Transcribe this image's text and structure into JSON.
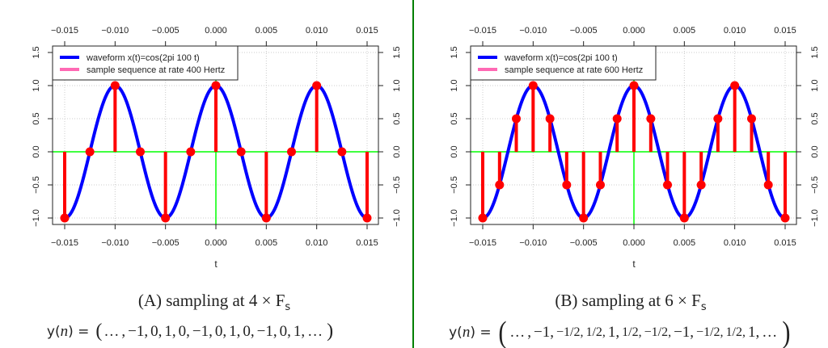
{
  "chart_data": [
    {
      "type": "line",
      "panel": "A",
      "xlabel": "t",
      "ylabel": "",
      "xlim": [
        -0.016,
        0.0162
      ],
      "ylim": [
        -1.08,
        1.6
      ],
      "x_ticks": [
        "-0.015",
        "-0.010",
        "-0.005",
        "0.000",
        "0.005",
        "0.010",
        "0.015"
      ],
      "x_tick_values": [
        -0.015,
        -0.01,
        -0.005,
        0,
        0.005,
        0.01,
        0.015
      ],
      "y_ticks": [
        "-1.0",
        "-0.5",
        "0.0",
        "0.5",
        "1.0",
        "1.5"
      ],
      "y_tick_values": [
        -1,
        -0.5,
        0,
        0.5,
        1,
        1.5
      ],
      "grid": true,
      "legend_placement": "top-left",
      "series": [
        {
          "name": "waveform x(t)=cos(2pi 100 t)",
          "kind": "curve",
          "frequency_hz": 100,
          "color": "#0000ff"
        },
        {
          "name": "sample sequence at rate 400 Hertz",
          "kind": "stem",
          "color": "#ff0000",
          "legend_color": "#ff69b4",
          "t": [
            -0.015,
            -0.0125,
            -0.01,
            -0.0075,
            -0.005,
            -0.0025,
            0,
            0.0025,
            0.005,
            0.0075,
            0.01,
            0.0125,
            0.015
          ],
          "values": [
            -1,
            0,
            1,
            0,
            -1,
            0,
            1,
            0,
            -1,
            0,
            1,
            0,
            -1
          ]
        }
      ],
      "axis_line_color": "#00ff00"
    },
    {
      "type": "line",
      "panel": "B",
      "xlabel": "t",
      "ylabel": "",
      "xlim": [
        -0.016,
        0.0162
      ],
      "ylim": [
        -1.08,
        1.6
      ],
      "x_ticks": [
        "-0.015",
        "-0.010",
        "-0.005",
        "0.000",
        "0.005",
        "0.010",
        "0.015"
      ],
      "x_tick_values": [
        -0.015,
        -0.01,
        -0.005,
        0,
        0.005,
        0.01,
        0.015
      ],
      "y_ticks": [
        "-1.0",
        "-0.5",
        "0.0",
        "0.5",
        "1.0",
        "1.5"
      ],
      "y_tick_values": [
        -1,
        -0.5,
        0,
        0.5,
        1,
        1.5
      ],
      "grid": true,
      "legend_placement": "top-left",
      "series": [
        {
          "name": "waveform x(t)=cos(2pi 100 t)",
          "kind": "curve",
          "frequency_hz": 100,
          "color": "#0000ff"
        },
        {
          "name": "sample sequence at rate 600 Hertz",
          "kind": "stem",
          "color": "#ff0000",
          "legend_color": "#ff69b4",
          "t": [
            -0.015,
            -0.01333,
            -0.01167,
            -0.01,
            -0.00833,
            -0.00667,
            -0.005,
            -0.00333,
            -0.00167,
            0,
            0.00167,
            0.00333,
            0.005,
            0.00667,
            0.00833,
            0.01,
            0.01167,
            0.01333,
            0.015
          ],
          "values": [
            -1,
            -0.5,
            0.5,
            1,
            0.5,
            -0.5,
            -1,
            -0.5,
            0.5,
            1,
            0.5,
            -0.5,
            -1,
            -0.5,
            0.5,
            1,
            0.5,
            -0.5,
            -1
          ]
        }
      ],
      "axis_line_color": "#00ff00"
    }
  ],
  "captions": {
    "a": {
      "prefix": "(A) sampling at 4 × F",
      "sub": "s"
    },
    "b": {
      "prefix": "(B) sampling at 6 × F",
      "sub": "s"
    }
  },
  "equations": {
    "lhs_func": "y(",
    "lhs_var": "n",
    "lhs_end": ") =",
    "a_tokens": [
      "…",
      ",",
      "−1,",
      "0,",
      "1,",
      "0,",
      "−1,",
      "0,",
      "1,",
      "0,",
      "−1,",
      "0,",
      "1,",
      "…"
    ],
    "b_tokens": [
      "…",
      ",",
      "−1,",
      "−1/2,",
      "1/2,",
      "1,",
      "1/2,",
      "−1/2,",
      "−1,",
      "−1/2,",
      "1/2,",
      "1,",
      "…"
    ]
  },
  "divider_color": "#008000"
}
